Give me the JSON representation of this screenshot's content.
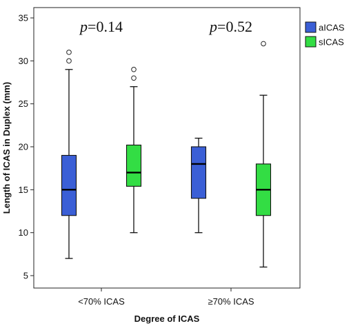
{
  "chart_data": {
    "type": "boxplot",
    "xlabel": "Degree of ICAS",
    "ylabel": "Length of ICAS in Duplex (mm)",
    "ylim": [
      4,
      36
    ],
    "yticks": [
      5,
      10,
      15,
      20,
      25,
      30,
      35
    ],
    "categories": [
      "<70% ICAS",
      "≥70% ICAS"
    ],
    "series": [
      {
        "name": "aICAS",
        "color": "#3b5fd6",
        "boxes": [
          {
            "min": 7,
            "q1": 12,
            "median": 15,
            "q3": 19,
            "max": 29,
            "outliers": [
              30,
              31
            ]
          },
          {
            "min": 10,
            "q1": 14,
            "median": 18,
            "q3": 20,
            "max": 21,
            "outliers": []
          }
        ]
      },
      {
        "name": "sICAS",
        "color": "#33dd44",
        "boxes": [
          {
            "min": 10,
            "q1": 15.4,
            "median": 17,
            "q3": 20.2,
            "max": 27,
            "outliers": [
              28,
              29
            ]
          },
          {
            "min": 6,
            "q1": 12,
            "median": 15,
            "q3": 18,
            "max": 26,
            "outliers": [
              32
            ]
          }
        ]
      }
    ],
    "annotations": [
      {
        "category": "<70% ICAS",
        "label": "p",
        "value": "=0.14"
      },
      {
        "category": "≥70% ICAS",
        "label": "p",
        "value": "=0.52"
      }
    ],
    "legend": "top-right",
    "grid": false
  }
}
